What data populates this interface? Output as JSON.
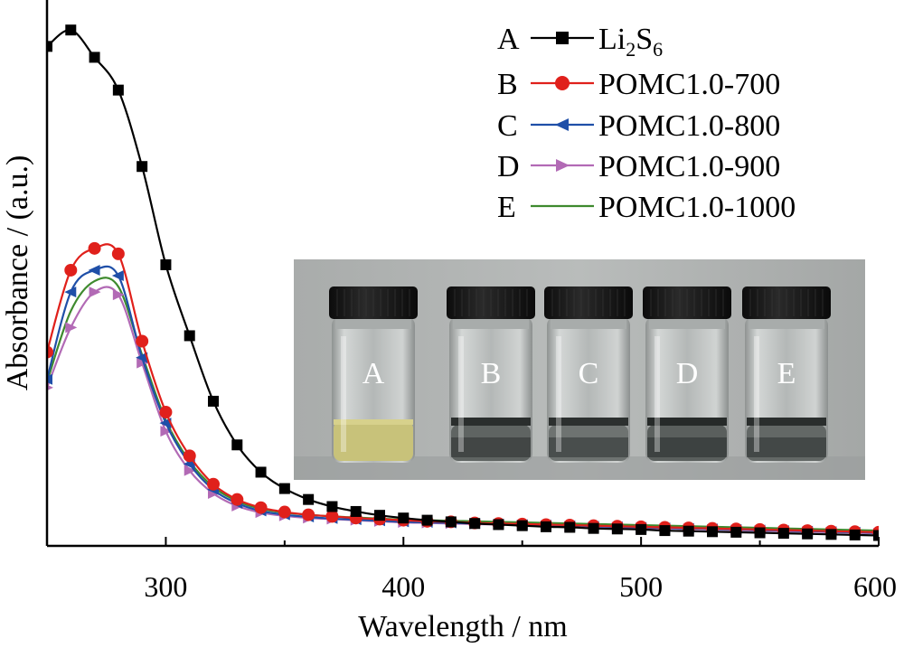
{
  "chart_data": {
    "type": "line",
    "title": "",
    "xlabel": "Wavelength / nm",
    "ylabel": "Absorbance / (a.u.)",
    "xlim": [
      250,
      600
    ],
    "ylim": [
      0,
      1.0
    ],
    "y_tick_labels_shown": false,
    "x_ticks": [
      300,
      400,
      500,
      600
    ],
    "grid": false,
    "legend_position": "top-right",
    "series": [
      {
        "letter": "A",
        "name": "Li2S6",
        "name_main": "Li",
        "name_sub1": "2",
        "name_mid": "S",
        "name_sub2": "6",
        "color": "#000000",
        "marker": "square",
        "x": [
          250,
          260,
          270,
          280,
          290,
          300,
          310,
          320,
          330,
          340,
          350,
          360,
          370,
          380,
          390,
          400,
          410,
          420,
          430,
          440,
          450,
          460,
          470,
          480,
          490,
          500,
          510,
          520,
          530,
          540,
          550,
          560,
          570,
          580,
          590,
          600
        ],
        "y": [
          0.915,
          0.945,
          0.895,
          0.835,
          0.695,
          0.515,
          0.385,
          0.265,
          0.185,
          0.135,
          0.105,
          0.085,
          0.072,
          0.063,
          0.056,
          0.051,
          0.047,
          0.044,
          0.041,
          0.039,
          0.037,
          0.035,
          0.034,
          0.032,
          0.031,
          0.03,
          0.028,
          0.027,
          0.026,
          0.025,
          0.024,
          0.023,
          0.022,
          0.021,
          0.02,
          0.019
        ]
      },
      {
        "letter": "B",
        "name": "POMC1.0-700",
        "color": "#e0201b",
        "marker": "circle",
        "x": [
          250,
          260,
          270,
          280,
          290,
          300,
          310,
          320,
          330,
          340,
          350,
          360,
          370,
          380,
          390,
          400,
          410,
          420,
          430,
          440,
          450,
          460,
          470,
          480,
          490,
          500,
          510,
          520,
          530,
          540,
          550,
          560,
          570,
          580,
          590,
          600
        ],
        "y": [
          0.355,
          0.505,
          0.545,
          0.535,
          0.375,
          0.245,
          0.165,
          0.113,
          0.085,
          0.07,
          0.062,
          0.057,
          0.054,
          0.051,
          0.049,
          0.047,
          0.045,
          0.044,
          0.042,
          0.041,
          0.04,
          0.039,
          0.038,
          0.037,
          0.036,
          0.035,
          0.034,
          0.033,
          0.032,
          0.031,
          0.03,
          0.029,
          0.028,
          0.027,
          0.026,
          0.025
        ]
      },
      {
        "letter": "C",
        "name": "POMC1.0-800",
        "color": "#1f4fa8",
        "marker": "triangle-left",
        "x": [
          250,
          260,
          270,
          280,
          290,
          300,
          310,
          320,
          330,
          340,
          350,
          360,
          370,
          380,
          390,
          400,
          410,
          420,
          430,
          440,
          450,
          460,
          470,
          480,
          490,
          500,
          510,
          520,
          530,
          540,
          550,
          560,
          570,
          580,
          590,
          600
        ],
        "y": [
          0.305,
          0.465,
          0.505,
          0.495,
          0.345,
          0.225,
          0.15,
          0.103,
          0.078,
          0.064,
          0.057,
          0.053,
          0.05,
          0.048,
          0.046,
          0.044,
          0.043,
          0.042,
          0.041,
          0.04,
          0.039,
          0.038,
          0.037,
          0.036,
          0.035,
          0.034,
          0.033,
          0.032,
          0.031,
          0.03,
          0.029,
          0.028,
          0.027,
          0.026,
          0.025,
          0.024
        ]
      },
      {
        "letter": "D",
        "name": "POMC1.0-900",
        "color": "#b26ab5",
        "marker": "triangle-right",
        "x": [
          250,
          260,
          270,
          280,
          290,
          300,
          310,
          320,
          330,
          340,
          350,
          360,
          370,
          380,
          390,
          400,
          410,
          420,
          430,
          440,
          450,
          460,
          470,
          480,
          490,
          500,
          510,
          520,
          530,
          540,
          550,
          560,
          570,
          580,
          590,
          600
        ],
        "y": [
          0.29,
          0.4,
          0.465,
          0.46,
          0.335,
          0.21,
          0.138,
          0.096,
          0.073,
          0.061,
          0.055,
          0.051,
          0.049,
          0.047,
          0.045,
          0.043,
          0.042,
          0.041,
          0.04,
          0.039,
          0.038,
          0.037,
          0.036,
          0.035,
          0.034,
          0.033,
          0.032,
          0.031,
          0.03,
          0.029,
          0.028,
          0.027,
          0.026,
          0.025,
          0.024,
          0.023
        ]
      },
      {
        "letter": "E",
        "name": "POMC1.0-1000",
        "color": "#3e8a2e",
        "marker": "none",
        "x": [
          250,
          260,
          270,
          280,
          290,
          300,
          310,
          320,
          330,
          340,
          350,
          360,
          370,
          380,
          390,
          400,
          410,
          420,
          430,
          440,
          450,
          460,
          470,
          480,
          490,
          500,
          510,
          520,
          530,
          540,
          550,
          560,
          570,
          580,
          590,
          600
        ],
        "y": [
          0.3,
          0.43,
          0.485,
          0.475,
          0.35,
          0.23,
          0.155,
          0.108,
          0.082,
          0.068,
          0.061,
          0.057,
          0.054,
          0.052,
          0.05,
          0.048,
          0.047,
          0.046,
          0.045,
          0.044,
          0.043,
          0.042,
          0.041,
          0.04,
          0.039,
          0.038,
          0.037,
          0.036,
          0.035,
          0.034,
          0.033,
          0.032,
          0.031,
          0.03,
          0.029,
          0.028
        ]
      }
    ]
  },
  "inset_photo": {
    "vials": [
      {
        "label": "A",
        "liquid_color": "#c8c27a",
        "band_color": "#d7d18c"
      },
      {
        "label": "B",
        "liquid_color": "#5f6462",
        "band_color": "#2a2e2d"
      },
      {
        "label": "C",
        "liquid_color": "#6e7371",
        "band_color": "#2c302f"
      },
      {
        "label": "D",
        "liquid_color": "#5a5f5d",
        "band_color": "#262a29"
      },
      {
        "label": "E",
        "liquid_color": "#636866",
        "band_color": "#2a2e2d"
      }
    ]
  }
}
